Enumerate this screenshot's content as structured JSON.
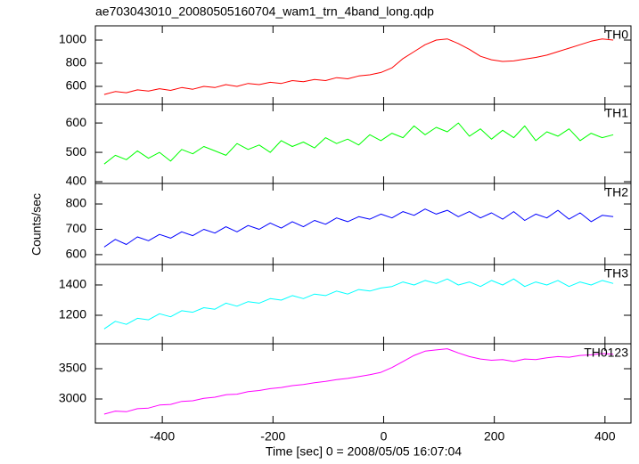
{
  "chart_data": {
    "type": "line",
    "title": "ae703043010_20080505160704_wam1_trn_4band_long.qdp",
    "xlabel": "Time [sec] 0 = 2008/05/05 16:07:04",
    "ylabel": "Counts/sec",
    "x": [
      -505,
      -485,
      -465,
      -445,
      -425,
      -405,
      -385,
      -365,
      -345,
      -325,
      -305,
      -285,
      -265,
      -245,
      -225,
      -205,
      -185,
      -165,
      -145,
      -125,
      -105,
      -85,
      -65,
      -45,
      -25,
      -5,
      15,
      35,
      55,
      75,
      95,
      115,
      135,
      155,
      175,
      195,
      215,
      235,
      255,
      275,
      295,
      315,
      335,
      355,
      375,
      395,
      415
    ],
    "xlim": [
      -521,
      447
    ],
    "xticks": [
      -400,
      -200,
      0,
      200,
      400
    ],
    "series": [
      {
        "name": "TH0",
        "color": "#ff0000",
        "ylim": [
          446,
          1123
        ],
        "yticks": [
          600,
          800,
          1000
        ],
        "values": [
          530,
          555,
          545,
          570,
          560,
          580,
          565,
          590,
          575,
          600,
          590,
          615,
          600,
          625,
          615,
          635,
          625,
          650,
          640,
          660,
          650,
          675,
          665,
          690,
          700,
          720,
          760,
          840,
          900,
          960,
          1000,
          1010,
          970,
          920,
          860,
          830,
          815,
          820,
          835,
          850,
          870,
          900,
          930,
          960,
          990,
          1010,
          1000
        ]
      },
      {
        "name": "TH1",
        "color": "#00ff00",
        "ylim": [
          394,
          664
        ],
        "yticks": [
          400,
          500,
          600
        ],
        "values": [
          460,
          490,
          475,
          505,
          480,
          500,
          470,
          510,
          495,
          520,
          505,
          490,
          530,
          510,
          525,
          500,
          540,
          520,
          535,
          515,
          550,
          530,
          545,
          525,
          560,
          540,
          565,
          550,
          590,
          560,
          585,
          570,
          600,
          555,
          580,
          545,
          575,
          550,
          590,
          540,
          570,
          555,
          580,
          540,
          565,
          550,
          560
        ]
      },
      {
        "name": "TH2",
        "color": "#0000ff",
        "ylim": [
          561,
          881
        ],
        "yticks": [
          600,
          700,
          800
        ],
        "values": [
          630,
          660,
          640,
          670,
          655,
          680,
          665,
          690,
          675,
          700,
          685,
          710,
          690,
          715,
          700,
          725,
          705,
          730,
          710,
          735,
          720,
          745,
          730,
          750,
          740,
          760,
          745,
          770,
          755,
          780,
          760,
          775,
          750,
          770,
          745,
          765,
          740,
          770,
          735,
          760,
          745,
          775,
          740,
          765,
          730,
          755,
          750
        ]
      },
      {
        "name": "TH3",
        "color": "#00ffff",
        "ylim": [
          1012,
          1535
        ],
        "yticks": [
          1200,
          1400
        ],
        "values": [
          1110,
          1160,
          1140,
          1180,
          1170,
          1210,
          1190,
          1230,
          1220,
          1250,
          1240,
          1280,
          1260,
          1290,
          1280,
          1310,
          1300,
          1330,
          1310,
          1340,
          1330,
          1360,
          1340,
          1370,
          1360,
          1380,
          1390,
          1420,
          1400,
          1430,
          1410,
          1440,
          1400,
          1420,
          1390,
          1430,
          1400,
          1440,
          1390,
          1420,
          1400,
          1430,
          1390,
          1420,
          1400,
          1430,
          1410
        ]
      },
      {
        "name": "TH0123",
        "color": "#ff00ff",
        "ylim": [
          2603,
          3912
        ],
        "yticks": [
          3000,
          3500
        ],
        "values": [
          2750,
          2800,
          2790,
          2840,
          2850,
          2900,
          2910,
          2960,
          2970,
          3010,
          3030,
          3070,
          3080,
          3120,
          3140,
          3170,
          3190,
          3220,
          3240,
          3270,
          3290,
          3320,
          3340,
          3370,
          3400,
          3440,
          3520,
          3620,
          3720,
          3790,
          3810,
          3830,
          3760,
          3700,
          3660,
          3640,
          3650,
          3620,
          3660,
          3650,
          3680,
          3700,
          3690,
          3720,
          3730,
          3750,
          3740
        ]
      }
    ]
  }
}
